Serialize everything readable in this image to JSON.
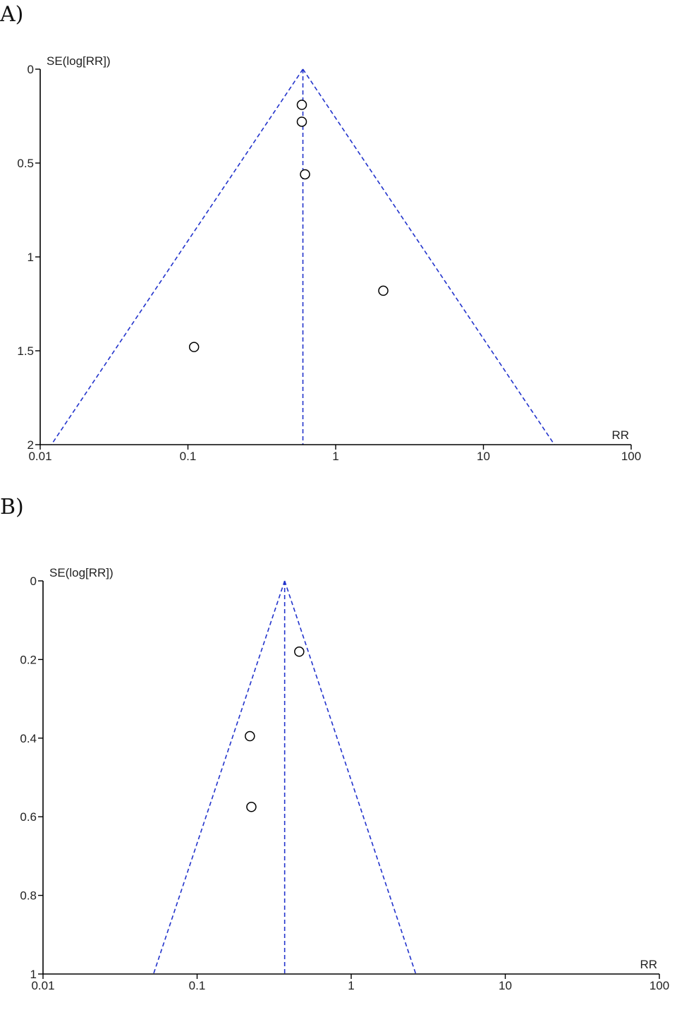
{
  "chart_data": [
    {
      "panel_label": "A)",
      "type": "scatter",
      "ylabel": "SE(log[RR])",
      "xlabel": "RR",
      "x_scale": "log",
      "xlim": [
        0.01,
        100
      ],
      "ylim": [
        0,
        2
      ],
      "y_inverted": true,
      "x_ticks": [
        0.01,
        0.1,
        1,
        10,
        100
      ],
      "x_tick_labels": [
        "0.01",
        "0.1",
        "1",
        "10",
        "100"
      ],
      "y_ticks": [
        0,
        0.5,
        1,
        1.5,
        2
      ],
      "y_tick_labels": [
        "0",
        "0.5",
        "1",
        "1.5",
        "2"
      ],
      "pooled_rr": 0.6,
      "funnel_line_color": "#2233cc",
      "points": [
        {
          "x": 0.59,
          "y": 0.19
        },
        {
          "x": 0.59,
          "y": 0.28
        },
        {
          "x": 0.62,
          "y": 0.56
        },
        {
          "x": 2.1,
          "y": 1.18
        },
        {
          "x": 0.11,
          "y": 1.48
        }
      ]
    },
    {
      "panel_label": "B)",
      "type": "scatter",
      "ylabel": "SE(log[RR])",
      "xlabel": "RR",
      "x_scale": "log",
      "xlim": [
        0.01,
        100
      ],
      "ylim": [
        0,
        1
      ],
      "y_inverted": true,
      "x_ticks": [
        0.01,
        0.1,
        1,
        10,
        100
      ],
      "x_tick_labels": [
        "0.01",
        "0.1",
        "1",
        "10",
        "100"
      ],
      "y_ticks": [
        0,
        0.2,
        0.4,
        0.6,
        0.8,
        1
      ],
      "y_tick_labels": [
        "0",
        "0.2",
        "0.4",
        "0.6",
        "0.8",
        "1"
      ],
      "pooled_rr": 0.37,
      "funnel_line_color": "#2233cc",
      "points": [
        {
          "x": 0.46,
          "y": 0.18
        },
        {
          "x": 0.22,
          "y": 0.395
        },
        {
          "x": 0.225,
          "y": 0.575
        }
      ]
    }
  ]
}
